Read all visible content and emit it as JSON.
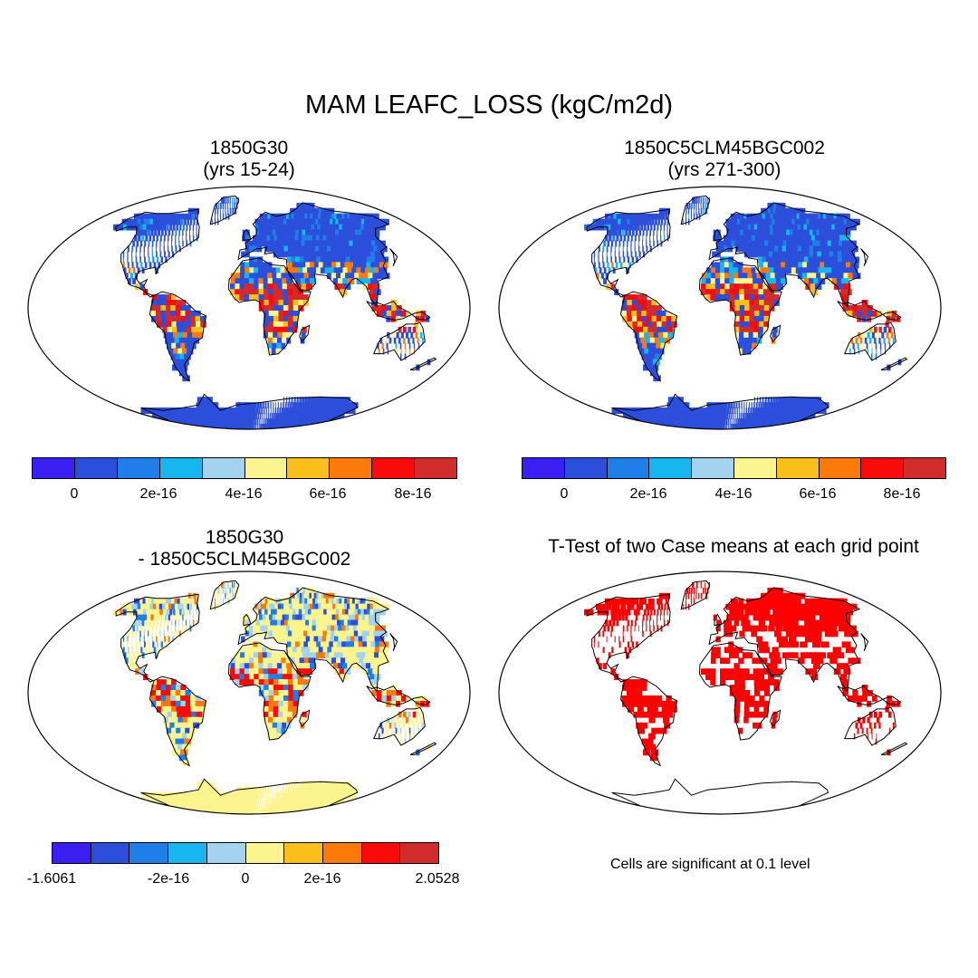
{
  "title": "MAM LEAFC_LOSS (kgC/m2d)",
  "panels": [
    {
      "title_line1": "1850G30",
      "title_line2": "(yrs 15-24)"
    },
    {
      "title_line1": "1850C5CLM45BGC002",
      "title_line2": "(yrs 271-300)"
    },
    {
      "title_line1": "1850G30",
      "title_line2": "- 1850C5CLM45BGC002"
    },
    {
      "title_line1": "T-Test of two Case means at each grid point",
      "title_line2": ""
    }
  ],
  "colorbar_colors": [
    "#3b1ff2",
    "#2c4fdb",
    "#1f7ee8",
    "#17b6ee",
    "#a3d3ee",
    "#fcf58f",
    "#fbbf1c",
    "#fb7a09",
    "#fb0a0a",
    "#d22b2b"
  ],
  "colorbar_top": {
    "labels": [
      "0",
      "2e-16",
      "4e-16",
      "6e-16",
      "8e-16"
    ]
  },
  "colorbar_diff": {
    "labels": [
      "-1.6061",
      "-2e-16",
      "0",
      "2e-16",
      "2.0528"
    ]
  },
  "significance_color": "#ff0000",
  "significance_note": "Cells are significant at 0.1 level"
}
